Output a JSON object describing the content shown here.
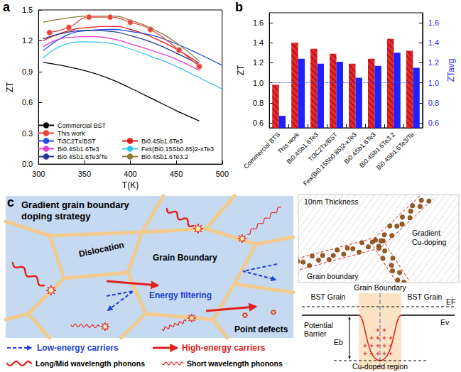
{
  "chart_data": [
    {
      "panel": "a",
      "type": "line",
      "x_label": "T(K)",
      "y_label": "ZT",
      "xlim": [
        300,
        500
      ],
      "xticks": [
        300,
        350,
        400,
        450,
        500
      ],
      "ylim": [
        0,
        1.5
      ],
      "yticks": [
        {
          "value": 0,
          "label": "0.0"
        },
        0.3,
        0.6,
        0.9,
        1.2,
        1.5
      ],
      "legend": "lower left",
      "series": [
        {
          "name": "Commercial BST",
          "color": "#000000",
          "x": [
            305,
            325,
            350,
            375,
            400,
            425,
            450,
            475
          ],
          "values": [
            0.99,
            0.96,
            0.91,
            0.84,
            0.74,
            0.63,
            0.52,
            0.42
          ]
        },
        {
          "name": "This work",
          "color": "#e8433a",
          "marker": "circle",
          "x": [
            312,
            333,
            355,
            378,
            400,
            422,
            453,
            475
          ],
          "values": [
            1.28,
            1.33,
            1.43,
            1.43,
            1.38,
            1.31,
            1.11,
            0.95
          ]
        },
        {
          "name": "Bi0.4Sb1.6Te3",
          "color": "#e41a1c",
          "x": [
            305,
            330,
            355,
            380,
            400,
            425,
            450,
            475
          ],
          "values": [
            1.2,
            1.29,
            1.33,
            1.34,
            1.31,
            1.23,
            1.12,
            0.98
          ]
        },
        {
          "name": "Ti3C2Tx/BST",
          "color": "#1f4fe0",
          "x": [
            305,
            330,
            355,
            380,
            400,
            425,
            450,
            475,
            500
          ],
          "values": [
            1.1,
            1.25,
            1.3,
            1.31,
            1.29,
            1.25,
            1.17,
            1.07,
            0.96
          ]
        },
        {
          "name": "Fex(Bi0.15Sb0.85)2-xTe3",
          "color": "#33c7e8",
          "x": [
            305,
            325,
            350,
            375,
            400,
            425,
            450,
            475,
            500
          ],
          "values": [
            1.03,
            1.15,
            1.19,
            1.18,
            1.12,
            1.04,
            0.95,
            0.84,
            0.73
          ]
        },
        {
          "name": "Bi0.4Sb1.6Te3",
          "color": "#e040d0",
          "x": [
            305,
            330,
            355,
            380,
            400,
            425,
            450,
            475
          ],
          "values": [
            1.14,
            1.23,
            1.24,
            1.22,
            1.17,
            1.1,
            1.02,
            0.91
          ]
        },
        {
          "name": "Bi0.4Sb1.6Te3.2",
          "color": "#8b7d3a",
          "x": [
            305,
            330,
            355,
            380,
            400,
            425,
            450,
            475
          ],
          "values": [
            1.38,
            1.42,
            1.44,
            1.44,
            1.4,
            1.31,
            1.18,
            1.0
          ]
        },
        {
          "name": "Bi0.4Sb1.6Te3/Te",
          "color": "#2b3a8f",
          "x": [
            305,
            330,
            355,
            380,
            400,
            425,
            450,
            475
          ],
          "values": [
            1.22,
            1.28,
            1.3,
            1.29,
            1.25,
            1.18,
            1.08,
            0.97
          ]
        }
      ]
    },
    {
      "panel": "b",
      "type": "bar",
      "y_label": "ZT",
      "y2_label": "ZTavg",
      "categories": [
        "Commercial BTS",
        "This work",
        "Bi0.4Sb1.6Te3",
        "Ti3C2Tx/BST",
        "Fex(Bi0.15Sb0.85)2-xTe3",
        "Bi0.4Sb1.6Te3",
        "Bi0.4Sb1.6Te3.2",
        "Bi0.4Sb1.6Te3/Te"
      ],
      "ylim": [
        0.55,
        1.7
      ],
      "yticks": [
        0.6,
        0.8,
        {
          "value": 1,
          "label": "1.0"
        },
        1.2,
        1.4,
        1.6
      ],
      "y2lim": [
        0.55,
        1.7
      ],
      "y2ticks": [
        0.6,
        0.8,
        {
          "value": 1,
          "label": "1.0"
        },
        1.2,
        1.4,
        1.6
      ],
      "reference_line": 1,
      "series": [
        {
          "name": "ZT",
          "color": "#e8272c",
          "values": [
            0.98,
            1.4,
            1.34,
            1.29,
            1.19,
            1.24,
            1.44,
            1.32
          ]
        },
        {
          "name": "ZTavg",
          "color": "#1f1fff",
          "axis": "y2",
          "values": [
            0.67,
            1.24,
            1.19,
            1.21,
            1.05,
            1.17,
            1.3,
            1.15
          ]
        }
      ]
    }
  ],
  "diagram": {
    "panel": "c",
    "strategy": {
      "title": "Gradient grain boundary doping strategy",
      "labels": {
        "dislocation": "Dislocation",
        "grain_boundary": "Grain Boundary",
        "energy_filtering": "Energy filtering",
        "point_defects": "Point defects"
      }
    },
    "key": [
      "Low-energy carriers",
      "High-energy carriers",
      "Long/Mid wavelength phonons",
      "Short wavelength phonons"
    ],
    "boundary_doping": {
      "thickness": "10nm Thickness",
      "doping": "Gradient Cu-doping",
      "boundary": "Grain boundary"
    },
    "band": {
      "grain_boundary": "Grain Boundary",
      "grains": [
        "BST Grain",
        "BST Grain"
      ],
      "fermi": "EF",
      "valence": "Ev",
      "barrier": "Potential Barrier",
      "barrier_height": "Eb",
      "region": "Cu-doped region"
    }
  }
}
